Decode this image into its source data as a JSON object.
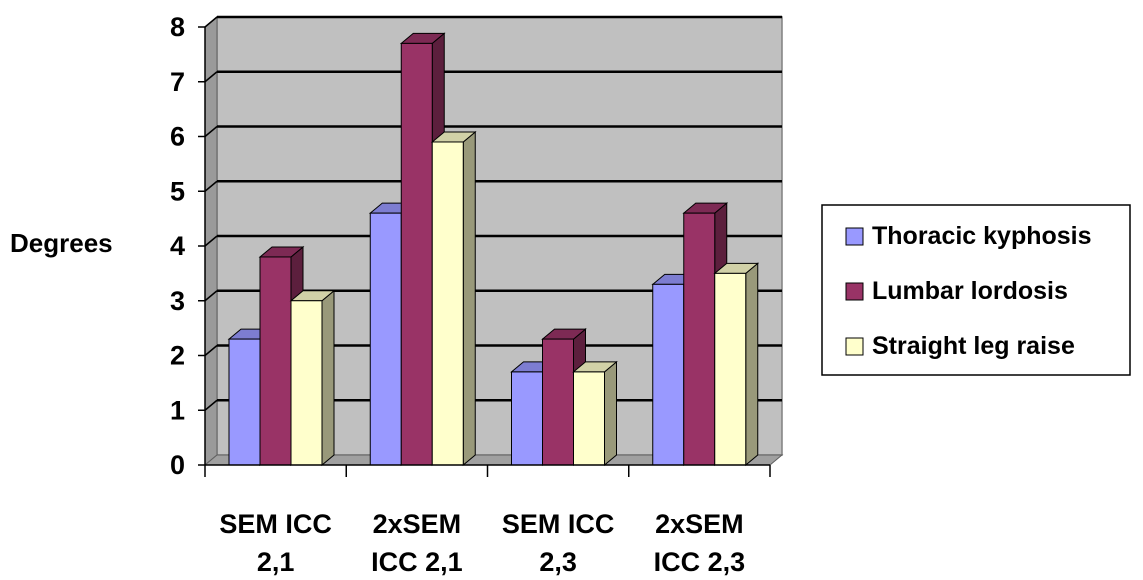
{
  "chart_data": {
    "type": "bar",
    "style": "3d-clustered-column",
    "categories": [
      [
        "SEM ICC",
        "2,1"
      ],
      [
        "2xSEM",
        "ICC 2,1"
      ],
      [
        "SEM ICC",
        "2,3"
      ],
      [
        "2xSEM",
        "ICC 2,3"
      ]
    ],
    "series": [
      {
        "name": "Thoracic kyphosis",
        "values": [
          2.3,
          4.6,
          1.7,
          3.3
        ],
        "color": "#9999ff"
      },
      {
        "name": "Lumbar lordosis",
        "values": [
          3.8,
          7.7,
          2.3,
          4.6
        ],
        "color": "#993366"
      },
      {
        "name": "Straight leg raise",
        "values": [
          3.0,
          5.9,
          1.7,
          3.5
        ],
        "color": "#ffffcc"
      }
    ],
    "ylabel": "Degrees",
    "ylim": [
      0,
      8
    ],
    "yticks": [
      "0",
      "1",
      "2",
      "3",
      "4",
      "5",
      "6",
      "7",
      "8"
    ],
    "grid": true,
    "legend": "right",
    "wall_color": "#c0c0c0"
  }
}
